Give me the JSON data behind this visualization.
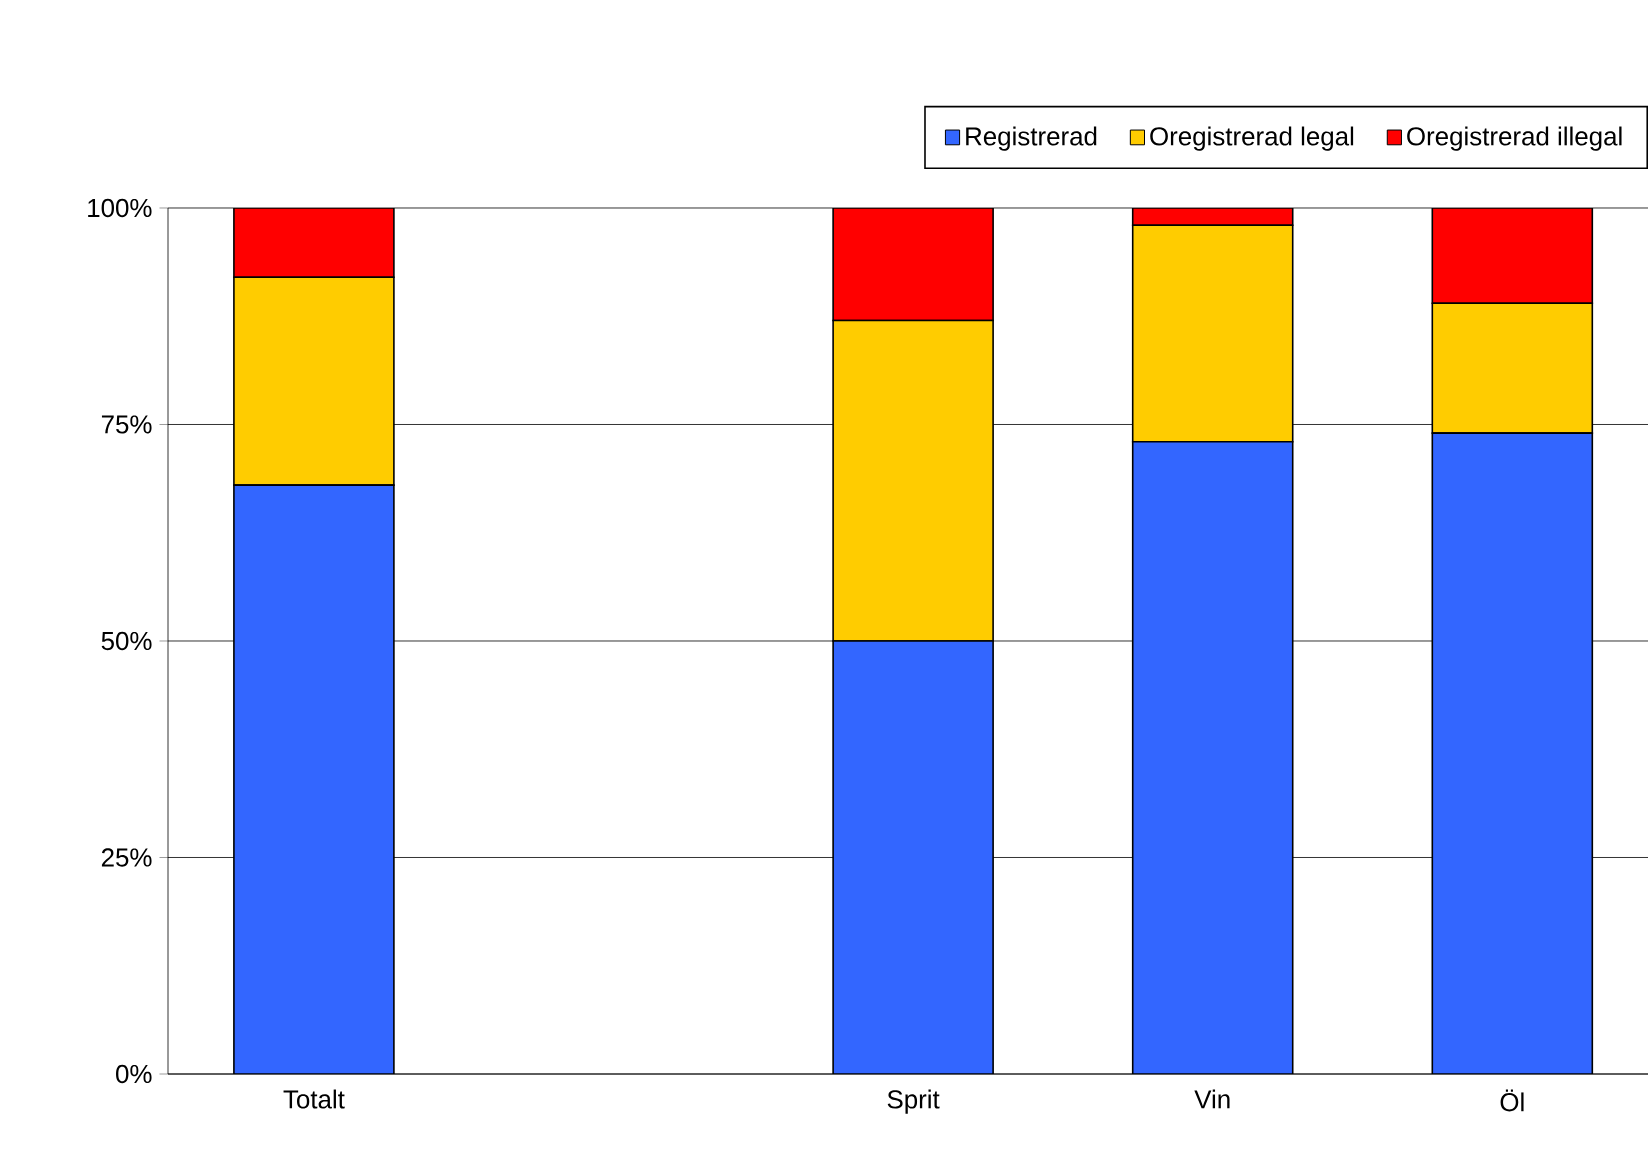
{
  "chart_data": {
    "type": "bar",
    "stacked": true,
    "categories": [
      "Totalt",
      null,
      "Sprit",
      "Vin",
      "Öl"
    ],
    "series": [
      {
        "name": "Registrerad",
        "color": "#3366ff",
        "values": [
          68,
          null,
          50,
          73,
          74
        ]
      },
      {
        "name": "Oregistrerad legal",
        "color": "#ffcc00",
        "values": [
          24,
          null,
          37,
          25,
          15
        ]
      },
      {
        "name": "Oregistrerad illegal",
        "color": "#ff0000",
        "values": [
          8,
          null,
          13,
          2,
          11
        ]
      }
    ],
    "ylim": [
      0,
      100
    ],
    "yticks": [
      {
        "value": 0,
        "label": "0%"
      },
      {
        "value": 25,
        "label": "25%"
      },
      {
        "value": 50,
        "label": "50%"
      },
      {
        "value": 75,
        "label": "75%"
      },
      {
        "value": 100,
        "label": "100%"
      }
    ],
    "grid": "y",
    "legend": "top right"
  }
}
